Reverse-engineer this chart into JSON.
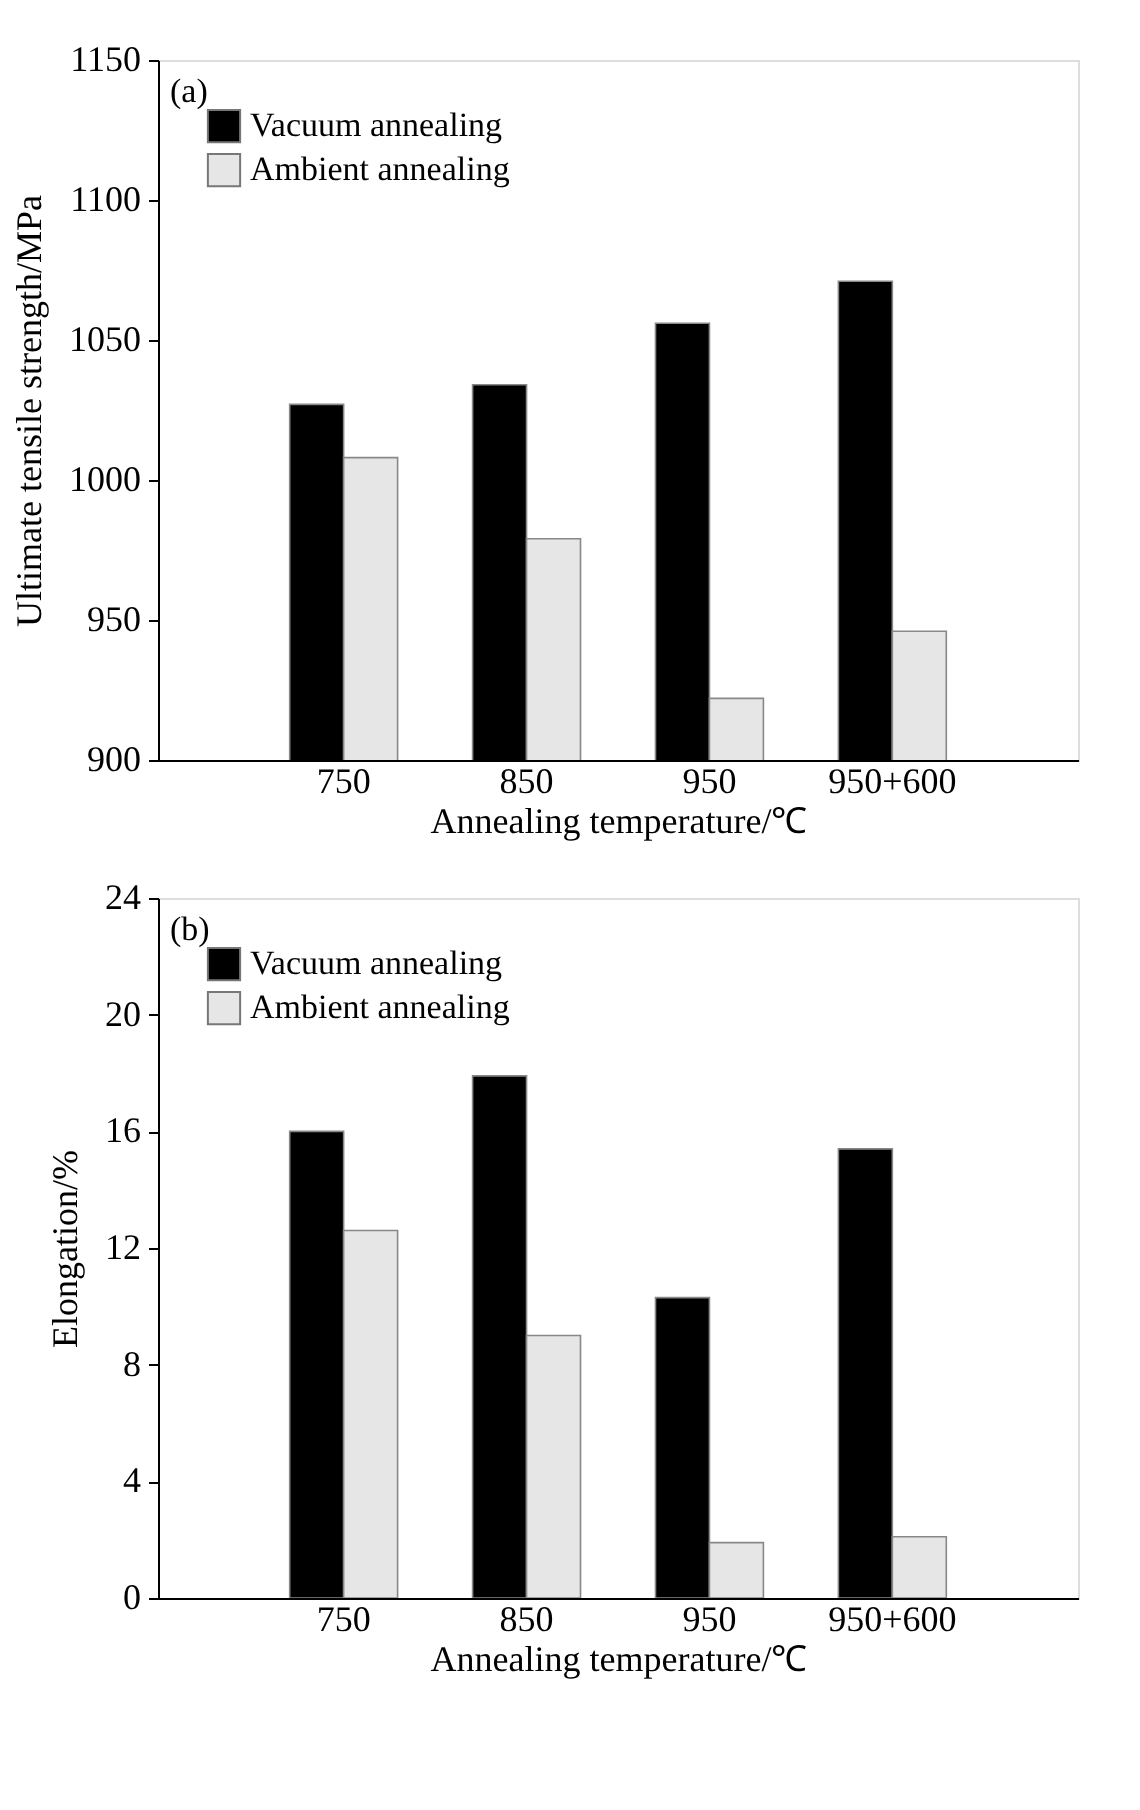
{
  "chart_data": [
    {
      "type": "bar",
      "annotations": [
        "(a)"
      ],
      "xlabel": "Annealing temperature/℃",
      "ylabel": "Ultimate tensile strength/MPa",
      "categories": [
        "750",
        "850",
        "950",
        "950+600"
      ],
      "series": [
        {
          "name": "Vacuum annealing",
          "color": "#000000",
          "values": [
            1027,
            1034,
            1056,
            1071
          ]
        },
        {
          "name": "Ambient annealing",
          "color": "#e6e6e6",
          "values": [
            1008,
            979,
            922,
            946
          ]
        }
      ],
      "ylim": [
        900,
        1150
      ],
      "yticks": [
        900,
        950,
        1000,
        1050,
        1100,
        1150
      ],
      "legend": "top left",
      "grid": false
    },
    {
      "type": "bar",
      "annotations": [
        "(b)"
      ],
      "xlabel": "Annealing temperature/℃",
      "ylabel": "Elongation/%",
      "categories": [
        "750",
        "850",
        "950",
        "950+600"
      ],
      "series": [
        {
          "name": "Vacuum annealing",
          "color": "#000000",
          "values": [
            16.0,
            17.9,
            10.3,
            15.4
          ]
        },
        {
          "name": "Ambient annealing",
          "color": "#e6e6e6",
          "values": [
            12.6,
            9.0,
            1.9,
            2.1
          ]
        }
      ],
      "ylim": [
        0,
        24
      ],
      "yticks": [
        0,
        4,
        8,
        12,
        16,
        20,
        24
      ],
      "legend": "top left",
      "grid": false
    }
  ]
}
